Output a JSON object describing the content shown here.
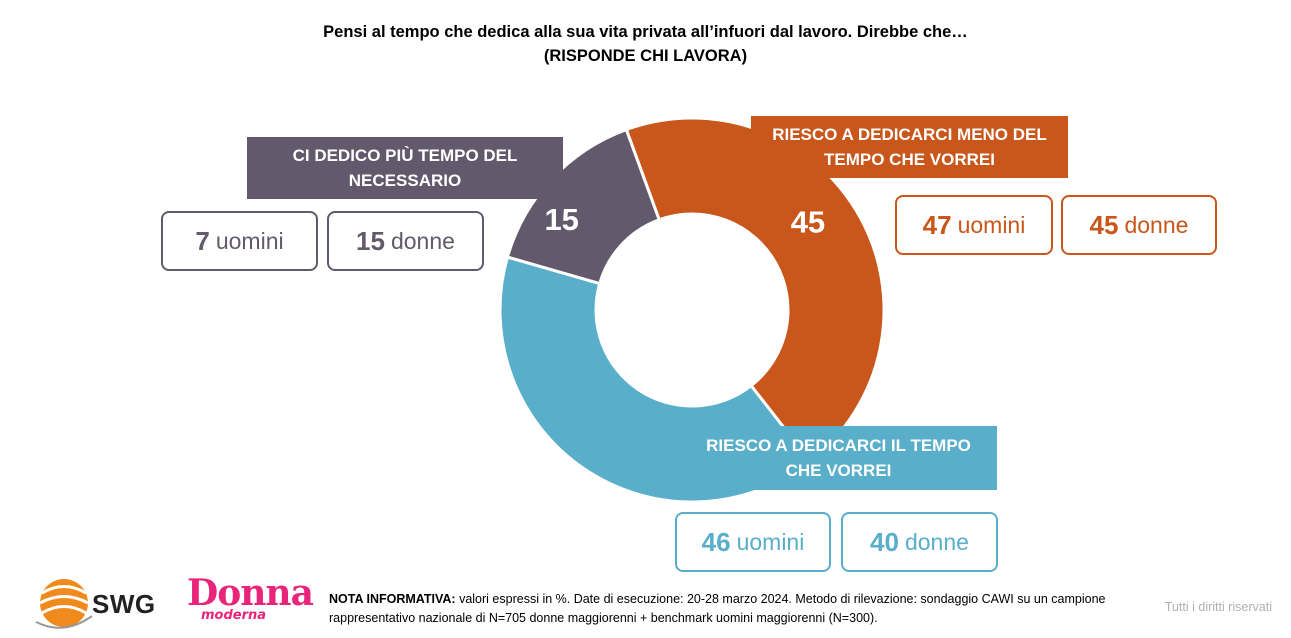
{
  "title_line1": "Pensi al tempo che dedica alla sua vita privata all’infuori dal lavoro. Direbbe che…",
  "title_line2": "(RISPONDE CHI LAVORA)",
  "chart_data": {
    "type": "pie",
    "donut": true,
    "slices": [
      {
        "label": "RIESCO A DEDICARCI MENO DEL TEMPO CHE VORREI",
        "value": 45,
        "color": "#c9561a",
        "uomini": 47,
        "donne": 45
      },
      {
        "label": "RIESCO A DEDICARCI IL TEMPO CHE VORREI",
        "value": 40,
        "color": "#59aec9",
        "uomini": 46,
        "donne": 40
      },
      {
        "label": "CI DEDICO PIÙ TEMPO DEL NECESSARIO",
        "value": 15,
        "color": "#63596c",
        "uomini": 7,
        "donne": 15
      }
    ]
  },
  "labels": {
    "meno": {
      "line1": "RIESCO A DEDICARCI MENO DEL",
      "line2": "TEMPO CHE VORREI"
    },
    "tempo": {
      "line1": "RIESCO A DEDICARCI IL TEMPO",
      "line2": "CHE VORREI"
    },
    "piu": {
      "line1": "CI DEDICO PIÙ TEMPO DEL",
      "line2": "NECESSARIO"
    }
  },
  "pills": {
    "uomini_word": "uomini",
    "donne_word": "donne",
    "meno": {
      "uomini": "47",
      "donne": "45"
    },
    "tempo": {
      "uomini": "46",
      "donne": "40"
    },
    "piu": {
      "uomini": "7",
      "donne": "15"
    }
  },
  "note": {
    "heading": "NOTA INFORMATIVA:",
    "text": " valori espressi in %. Date di esecuzione: 20-28 marzo 2024. Metodo di rilevazione: sondaggio CAWI su un campione rappresentativo nazionale di N=705 donne maggiorenni + benchmark uomini maggiorenni (N=300)."
  },
  "rights": "Tutti i diritti riservati",
  "logos": {
    "swg": "SWG",
    "donna": "Donna",
    "moderna": "moderna"
  }
}
